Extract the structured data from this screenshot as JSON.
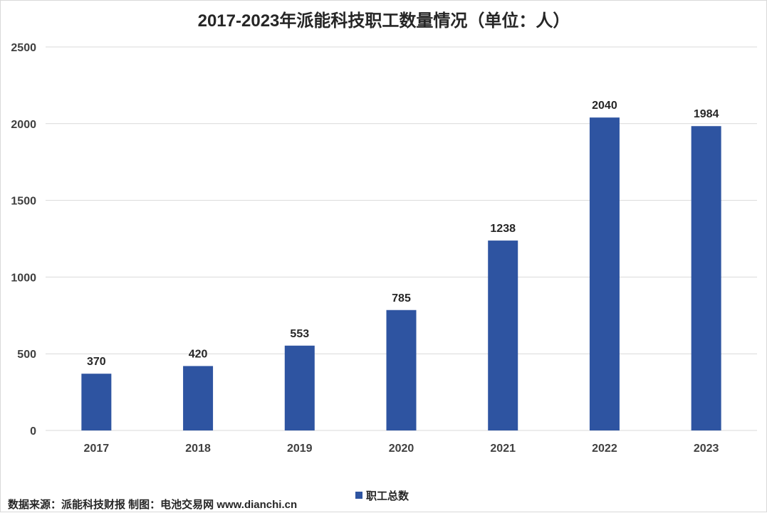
{
  "chart_data": {
    "type": "bar",
    "title": "2017-2023年派能科技职工数量情况（单位：人）",
    "categories": [
      "2017",
      "2018",
      "2019",
      "2020",
      "2021",
      "2022",
      "2023"
    ],
    "series": [
      {
        "name": "职工总数",
        "values": [
          370,
          420,
          553,
          785,
          1238,
          2040,
          1984
        ]
      }
    ],
    "ylim": [
      0,
      2500
    ],
    "yticks": [
      0,
      500,
      1000,
      1500,
      2000,
      2500
    ],
    "grid": true,
    "legend_position": "bottom",
    "bar_color": "#2e54a1",
    "grid_color": "#d9d9d9"
  },
  "footer": {
    "source": "数据来源：派能科技财报 制图：电池交易网 www.dianchi.cn"
  }
}
